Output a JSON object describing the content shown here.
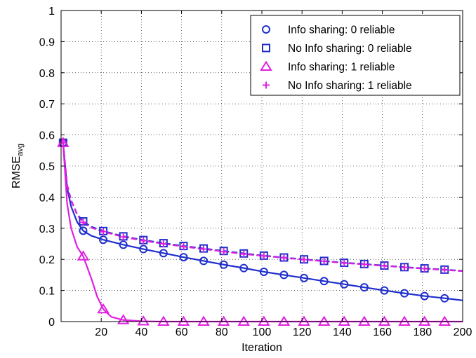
{
  "chart_data": {
    "type": "line",
    "title": "",
    "xlabel": "Iteration",
    "ylabel": "RMSE",
    "ylabel_sub": "avg",
    "xlim": [
      0,
      200
    ],
    "ylim": [
      0,
      1
    ],
    "xticks": [
      20,
      40,
      60,
      80,
      100,
      120,
      140,
      160,
      180,
      200
    ],
    "yticks": [
      0,
      0.1,
      0.2,
      0.3,
      0.4,
      0.5,
      0.6,
      0.7,
      0.8,
      0.9,
      1
    ],
    "ytick_labels": [
      "0",
      "0.1",
      "0.2",
      "0.3",
      "0.4",
      "0.5",
      "0.6",
      "0.7",
      "0.8",
      "0.9",
      "1"
    ],
    "grid": true,
    "legend_position": "top-right",
    "series": [
      {
        "name": "Info sharing: 0 reliable",
        "color": "#1f2fcc",
        "line_style": "solid",
        "marker": "circle",
        "x": [
          1,
          3,
          5,
          8,
          11,
          15,
          21,
          31,
          41,
          51,
          61,
          71,
          81,
          91,
          101,
          111,
          121,
          131,
          141,
          151,
          161,
          171,
          181,
          191,
          200
        ],
        "y": [
          0.575,
          0.43,
          0.37,
          0.32,
          0.292,
          0.276,
          0.263,
          0.247,
          0.233,
          0.22,
          0.207,
          0.195,
          0.183,
          0.172,
          0.16,
          0.15,
          0.14,
          0.13,
          0.12,
          0.11,
          0.1,
          0.091,
          0.082,
          0.075,
          0.068
        ]
      },
      {
        "name": "No Info sharing: 0 reliable",
        "color": "#1f2fcc",
        "line_style": "dashed",
        "marker": "square",
        "x": [
          1,
          3,
          5,
          8,
          11,
          15,
          21,
          31,
          41,
          51,
          61,
          71,
          81,
          91,
          101,
          111,
          121,
          131,
          141,
          151,
          161,
          171,
          181,
          191,
          200
        ],
        "y": [
          0.575,
          0.44,
          0.39,
          0.345,
          0.322,
          0.305,
          0.291,
          0.274,
          0.262,
          0.252,
          0.243,
          0.235,
          0.227,
          0.219,
          0.212,
          0.206,
          0.2,
          0.195,
          0.189,
          0.185,
          0.18,
          0.175,
          0.171,
          0.167,
          0.163
        ]
      },
      {
        "name": "Info sharing: 1 reliable",
        "color": "#e020e0",
        "line_style": "solid",
        "marker": "triangle",
        "x": [
          1,
          3,
          5,
          8,
          11,
          15,
          18,
          21,
          25,
          31,
          41,
          51,
          61,
          71,
          81,
          91,
          101,
          111,
          121,
          131,
          141,
          151,
          161,
          171,
          181,
          191,
          200
        ],
        "y": [
          0.575,
          0.38,
          0.3,
          0.24,
          0.21,
          0.14,
          0.08,
          0.04,
          0.015,
          0.005,
          0.001,
          0,
          0,
          0,
          0,
          0,
          0,
          0,
          0,
          0,
          0,
          0,
          0,
          0,
          0,
          0,
          0
        ]
      },
      {
        "name": "No Info sharing: 1 reliable",
        "color": "#e020e0",
        "line_style": "dashed",
        "marker": "plus",
        "x": [
          1,
          3,
          5,
          8,
          11,
          15,
          21,
          31,
          41,
          51,
          61,
          71,
          81,
          91,
          101,
          111,
          121,
          131,
          141,
          151,
          161,
          171,
          181,
          191,
          200
        ],
        "y": [
          0.575,
          0.44,
          0.39,
          0.343,
          0.319,
          0.302,
          0.289,
          0.272,
          0.26,
          0.25,
          0.241,
          0.233,
          0.225,
          0.217,
          0.211,
          0.205,
          0.199,
          0.194,
          0.188,
          0.184,
          0.179,
          0.174,
          0.17,
          0.166,
          0.162
        ]
      }
    ]
  }
}
